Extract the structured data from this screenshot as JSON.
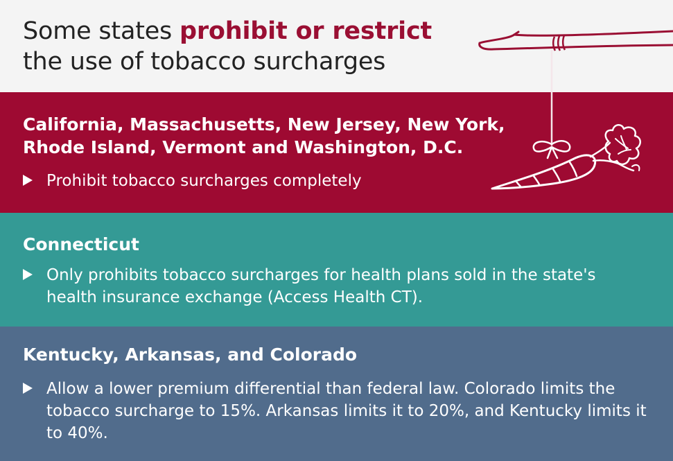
{
  "header": {
    "title_prefix": "Some states ",
    "title_highlight": "prohibit or restrict",
    "title_suffix": "the use of tobacco surcharges"
  },
  "sections": [
    {
      "title": "California, Massachusetts, New Jersey, New York, Rhode Island, Vermont and Washington, D.C.",
      "bullet": "Prohibit tobacco surcharges completely",
      "color": "#9e0a32"
    },
    {
      "title": "Connecticut",
      "bullet": "Only prohibits tobacco surcharges for health plans sold in the state's health insurance exchange (Access Health CT).",
      "color": "#349a95"
    },
    {
      "title": "Kentucky, Arkansas, and Colorado",
      "bullet": "Allow a lower premium differential than federal law. Colorado limits the tobacco surcharge to 15%. Arkansas limits it to 20%, and Kentucky limits it to 40%.",
      "color": "#516c8c"
    }
  ],
  "colors": {
    "accent": "#9a0f33",
    "header_bg": "#f4f4f4",
    "text_dark": "#222222"
  },
  "icons": {
    "illustration": "carrot-on-stick-icon",
    "bullet": "triangle-bullet-icon"
  }
}
